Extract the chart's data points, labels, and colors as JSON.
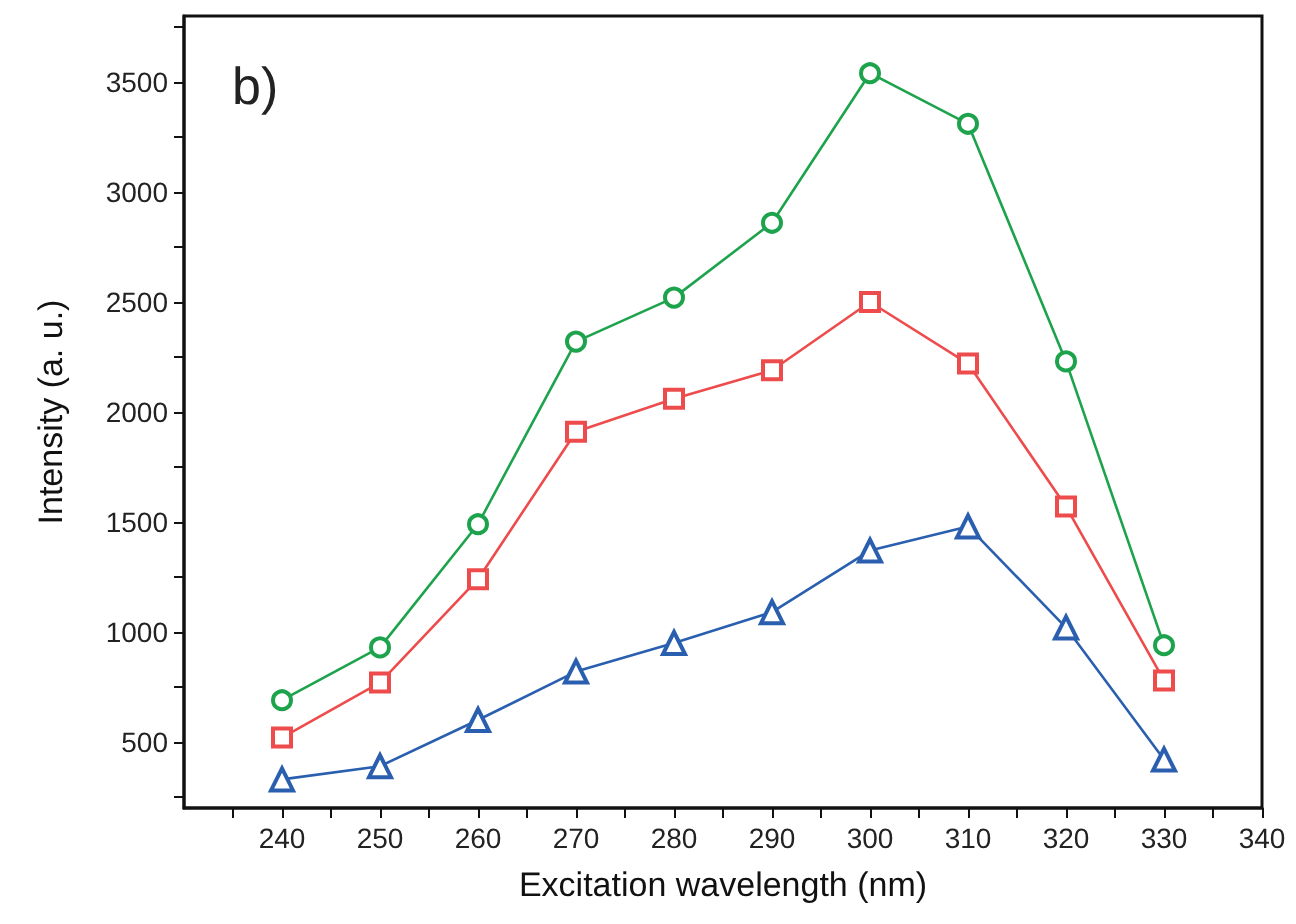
{
  "chart_data": {
    "type": "line",
    "xlabel": "Excitation wavelength (nm)",
    "ylabel": "Intensity (a. u.)",
    "annotations": [
      "b)"
    ],
    "x": [
      240,
      250,
      260,
      270,
      280,
      290,
      300,
      310,
      320,
      330
    ],
    "series": [
      {
        "color": "#1ea34d",
        "marker": "circle",
        "values": [
          690,
          930,
          1490,
          2320,
          2520,
          2860,
          3540,
          3310,
          2230,
          940
        ]
      },
      {
        "color": "#ee4c4c",
        "marker": "square",
        "values": [
          520,
          770,
          1240,
          1910,
          2060,
          2190,
          2500,
          2220,
          1570,
          780
        ]
      },
      {
        "color": "#2a5fb0",
        "marker": "triangle",
        "values": [
          330,
          390,
          600,
          820,
          950,
          1090,
          1370,
          1480,
          1020,
          420
        ]
      }
    ],
    "xlim": [
      230,
      340
    ],
    "ylim": [
      200,
      3800
    ],
    "xticks": [
      {
        "value": 235,
        "label": null
      },
      240,
      {
        "value": 245,
        "label": null
      },
      250,
      {
        "value": 255,
        "label": null
      },
      260,
      {
        "value": 265,
        "label": null
      },
      270,
      {
        "value": 275,
        "label": null
      },
      280,
      {
        "value": 285,
        "label": null
      },
      290,
      {
        "value": 295,
        "label": null
      },
      300,
      {
        "value": 305,
        "label": null
      },
      310,
      {
        "value": 315,
        "label": null
      },
      320,
      {
        "value": 325,
        "label": null
      },
      330,
      {
        "value": 335,
        "label": null
      },
      340
    ],
    "yticks": [
      {
        "value": 250,
        "label": null
      },
      500,
      {
        "value": 750,
        "label": null
      },
      1000,
      {
        "value": 1250,
        "label": null
      },
      1500,
      {
        "value": 1750,
        "label": null
      },
      2000,
      {
        "value": 2250,
        "label": null
      },
      2500,
      {
        "value": 2750,
        "label": null
      },
      3000,
      {
        "value": 3250,
        "label": null
      },
      3500,
      {
        "value": 3750,
        "label": null
      }
    ],
    "grid": false,
    "line_style": "solid"
  }
}
